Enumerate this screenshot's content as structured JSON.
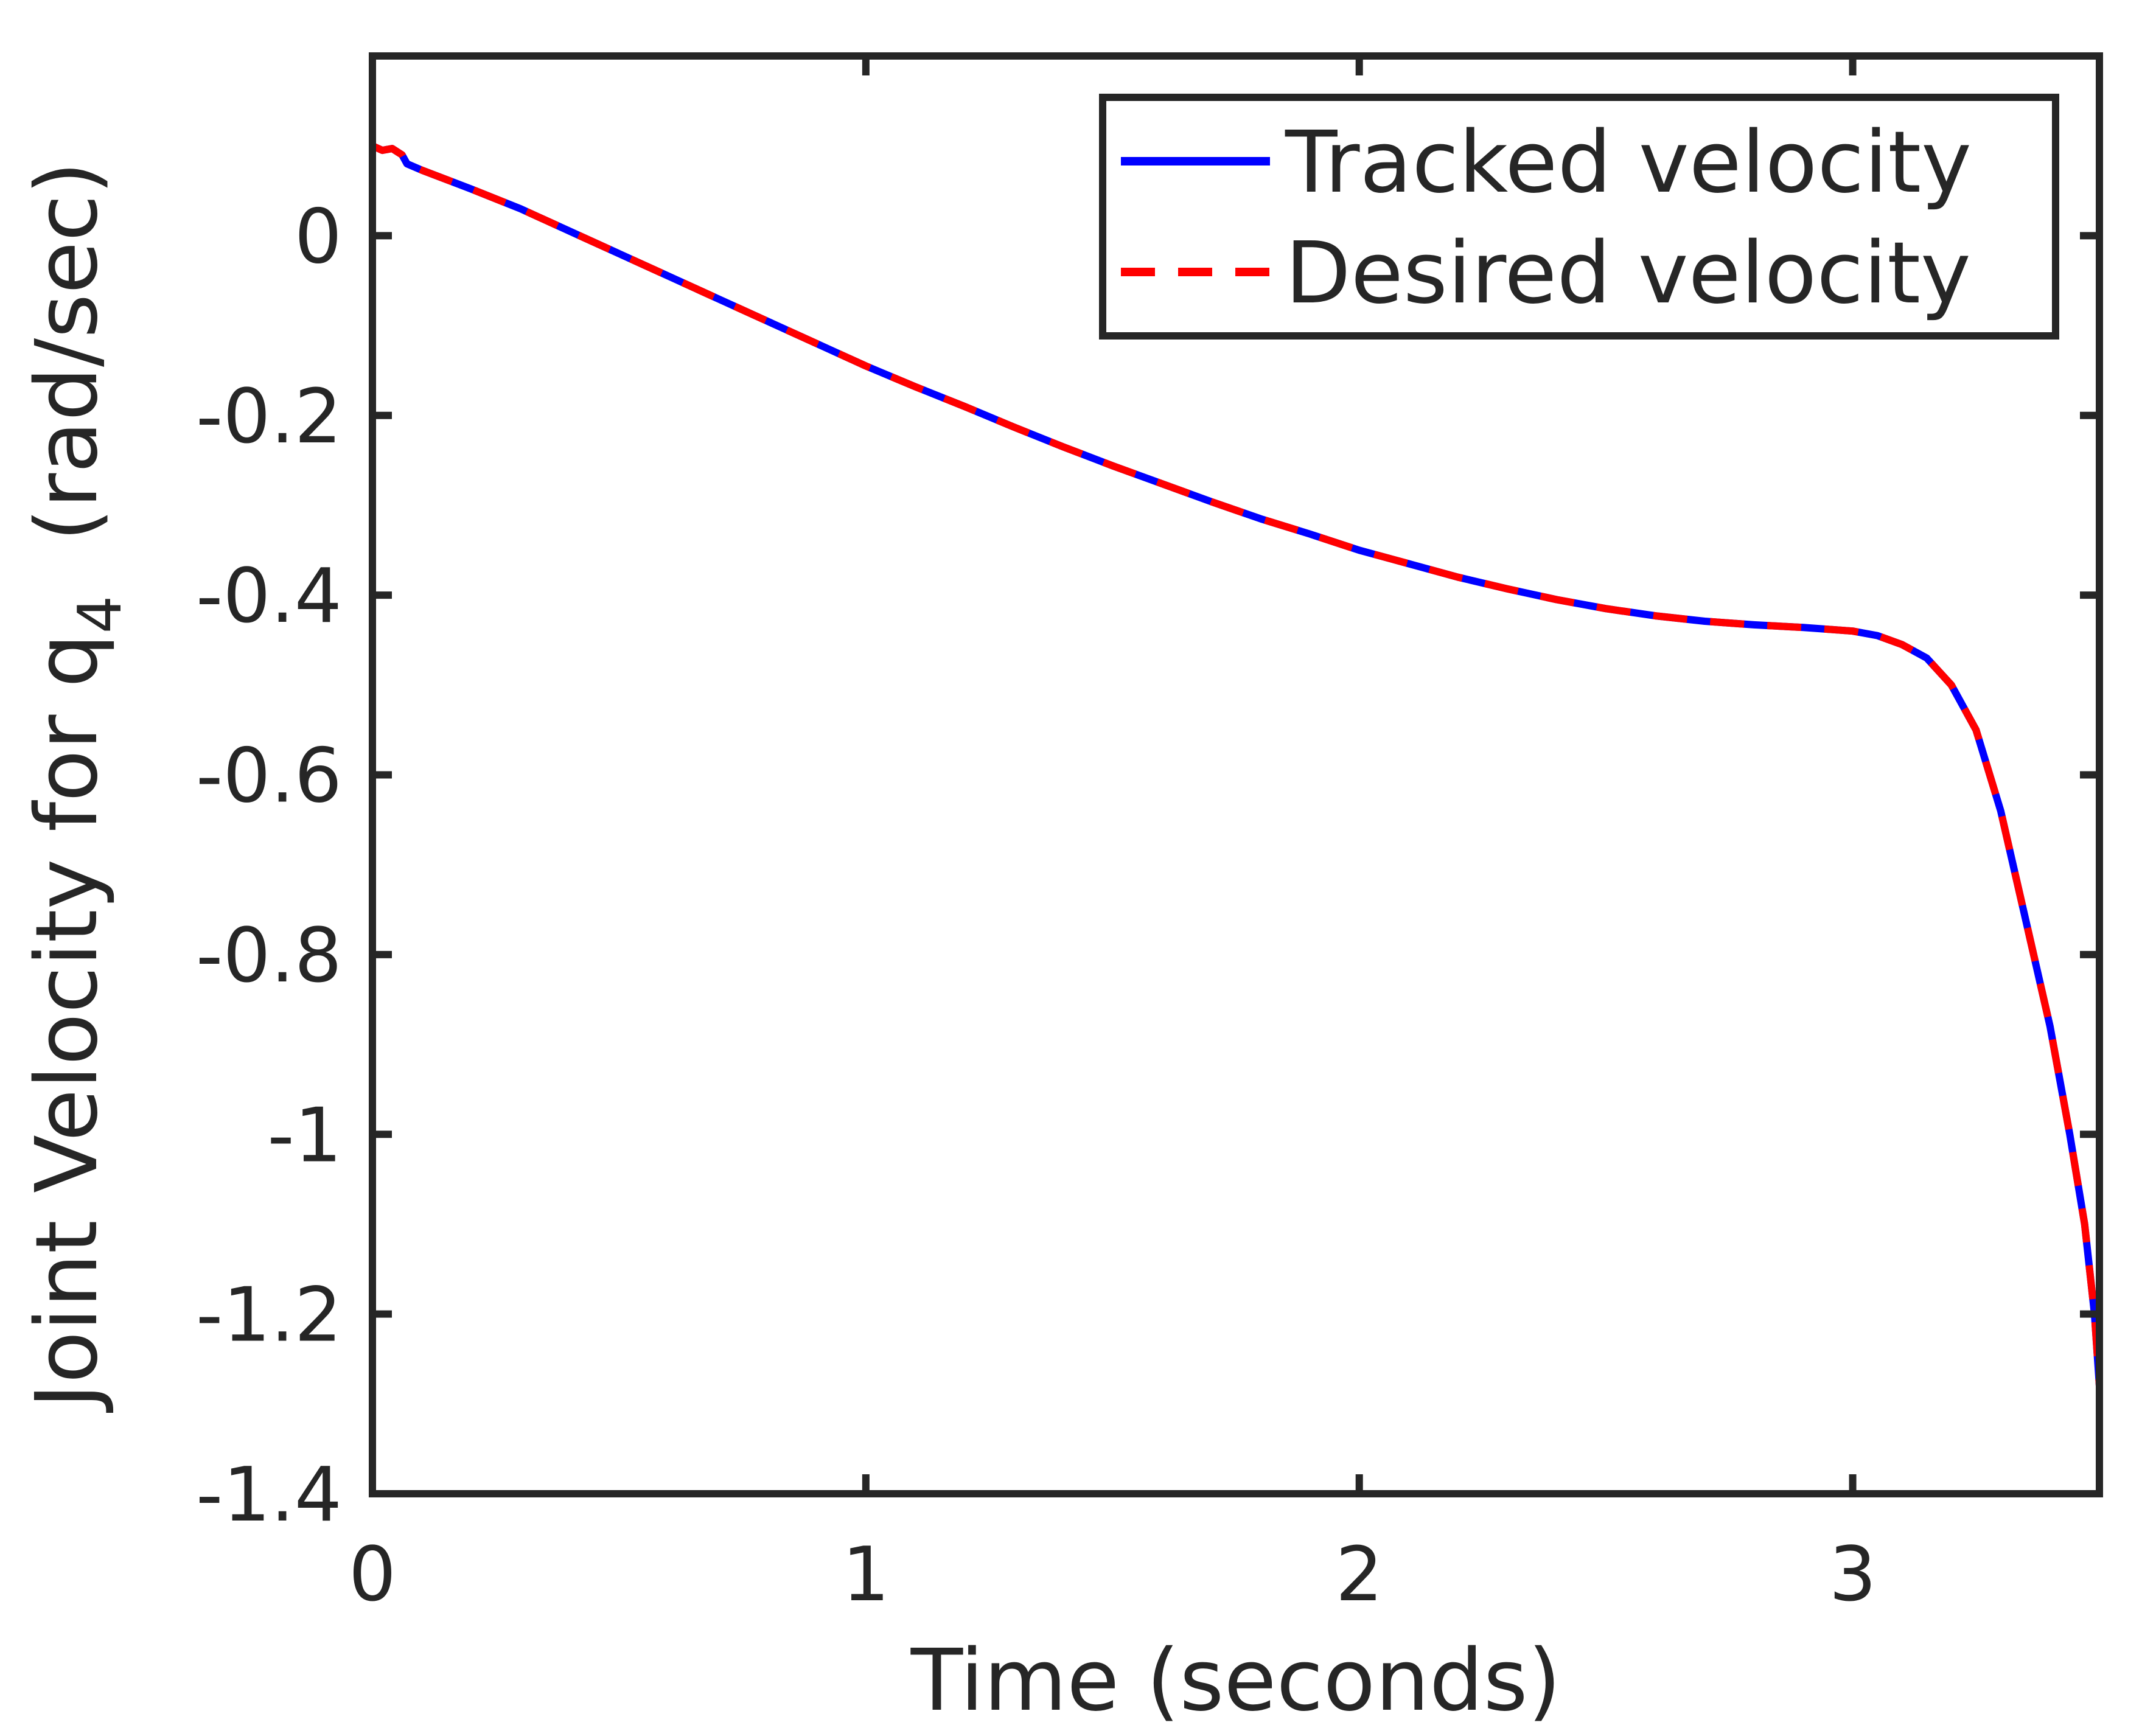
{
  "chart_data": {
    "type": "line",
    "title": "",
    "xlabel": "Time (seconds)",
    "ylabel_main": "Joint Velocity for q",
    "ylabel_subscript": "4",
    "ylabel_suffix": "(rad/sec)",
    "xlim": [
      0,
      3.5
    ],
    "ylim": [
      -1.4,
      0.2
    ],
    "grid": false,
    "legend_position": "top-right",
    "x_ticks": [
      0,
      1,
      2,
      3
    ],
    "x_tick_labels": [
      "0",
      "1",
      "2",
      "3"
    ],
    "y_ticks": [
      0,
      -0.2,
      -0.4,
      -0.6,
      -0.8,
      -1,
      -1.2,
      -1.4
    ],
    "y_tick_labels": [
      "0",
      "-0.2",
      "-0.4",
      "-0.6",
      "-0.8",
      "-1",
      "-1.2",
      "-1.4"
    ],
    "x": [
      0,
      0.02,
      0.04,
      0.06,
      0.07,
      0.1,
      0.2,
      0.3,
      0.4,
      0.5,
      0.6,
      0.7,
      0.8,
      0.9,
      1.0,
      1.1,
      1.2,
      1.3,
      1.4,
      1.5,
      1.6,
      1.7,
      1.8,
      1.9,
      2.0,
      2.1,
      2.2,
      2.3,
      2.4,
      2.5,
      2.6,
      2.7,
      2.8,
      2.9,
      3.0,
      3.05,
      3.1,
      3.15,
      3.2,
      3.25,
      3.3,
      3.35,
      3.4,
      3.44,
      3.47,
      3.49,
      3.5
    ],
    "series": [
      {
        "name": "Tracked velocity",
        "color": "#0000ff",
        "style": "solid",
        "values": [
          0.1,
          0.095,
          0.097,
          0.09,
          0.08,
          0.073,
          0.052,
          0.03,
          0.005,
          -0.02,
          -0.045,
          -0.07,
          -0.095,
          -0.12,
          -0.145,
          -0.168,
          -0.19,
          -0.213,
          -0.235,
          -0.256,
          -0.276,
          -0.296,
          -0.315,
          -0.332,
          -0.35,
          -0.365,
          -0.38,
          -0.393,
          -0.405,
          -0.415,
          -0.423,
          -0.429,
          -0.433,
          -0.436,
          -0.44,
          -0.445,
          -0.455,
          -0.47,
          -0.5,
          -0.55,
          -0.64,
          -0.76,
          -0.88,
          -1.0,
          -1.1,
          -1.2,
          -1.28
        ]
      },
      {
        "name": "Desired velocity",
        "color": "#ff0000",
        "style": "dashed",
        "values": [
          0.1,
          0.095,
          0.097,
          0.09,
          0.08,
          0.073,
          0.052,
          0.03,
          0.005,
          -0.02,
          -0.045,
          -0.07,
          -0.095,
          -0.12,
          -0.145,
          -0.168,
          -0.19,
          -0.213,
          -0.235,
          -0.256,
          -0.276,
          -0.296,
          -0.315,
          -0.332,
          -0.35,
          -0.365,
          -0.38,
          -0.393,
          -0.405,
          -0.415,
          -0.423,
          -0.429,
          -0.433,
          -0.436,
          -0.44,
          -0.445,
          -0.455,
          -0.47,
          -0.5,
          -0.55,
          -0.64,
          -0.76,
          -0.88,
          -1.0,
          -1.1,
          -1.2,
          -1.28
        ]
      }
    ]
  }
}
